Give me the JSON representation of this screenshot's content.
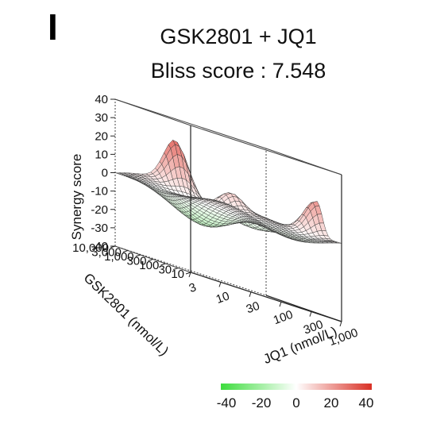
{
  "panel_label": "I",
  "chart_data": {
    "type": "surface",
    "title": "GSK2801 + JQ1",
    "subtitle": "Bliss score : 7.548",
    "zlabel": "Synergy score",
    "zlim": [
      -40,
      40
    ],
    "z_ticks": [
      "40",
      "30",
      "20",
      "10",
      "0",
      "-10",
      "-20",
      "-30",
      "-40"
    ],
    "y_axis": {
      "label": "GSK2801 (nmol/L)",
      "ticks": [
        "10",
        "30",
        "100",
        "300",
        "1,000",
        "3,000",
        "10,000"
      ]
    },
    "x_axis": {
      "label": "JQ1 (nmol/L)",
      "ticks": [
        "3",
        "10",
        "30",
        "100",
        "300",
        "1,000"
      ]
    },
    "surface_peaks": [
      {
        "jq1": "30",
        "gsk2801": "10,000",
        "synergy": 27
      },
      {
        "jq1": "1,000",
        "gsk2801": "100",
        "synergy": 22
      },
      {
        "jq1": "100",
        "gsk2801": "1,000",
        "synergy": 10
      }
    ],
    "surface_min": -10,
    "colorbar": {
      "ticks": [
        "-40",
        "-20",
        "0",
        "20",
        "40"
      ],
      "low_color": "#3ddc3d",
      "mid_color": "#ffffff",
      "high_color": "#d93025"
    }
  }
}
